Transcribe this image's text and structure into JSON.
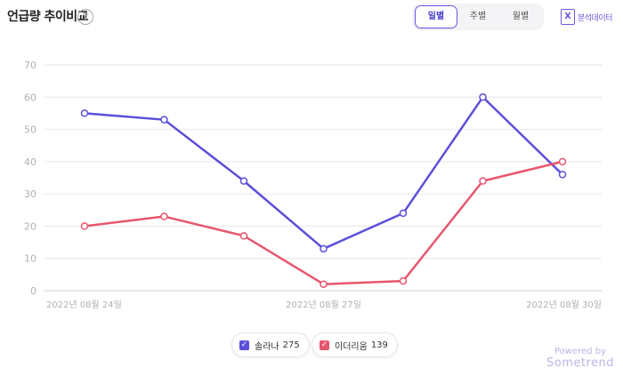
{
  "header": {
    "title": "언급량 추이비교",
    "help_symbol": "?",
    "tabs": [
      {
        "label": "일별",
        "active": true
      },
      {
        "label": "주별",
        "active": false
      },
      {
        "label": "월별",
        "active": false
      }
    ],
    "excel_icon_glyph": "X",
    "excel_label": "분석데이터"
  },
  "chart_data": {
    "type": "line",
    "x": [
      "2022-08-24",
      "2022-08-25",
      "2022-08-26",
      "2022-08-27",
      "2022-08-28",
      "2022-08-29",
      "2022-08-30"
    ],
    "x_tick_labels": [
      {
        "index": 0,
        "label": "2022년 08월 24일"
      },
      {
        "index": 3,
        "label": "2022년 08월 27일"
      },
      {
        "index": 6,
        "label": "2022년 08월 30일"
      }
    ],
    "ylim": [
      0,
      70
    ],
    "yticks": [
      0,
      10,
      20,
      30,
      40,
      50,
      60,
      70
    ],
    "grid": true,
    "legend_position": "bottom",
    "series": [
      {
        "name": "솔라나",
        "total": 275,
        "color": "#5b4fd9",
        "values": [
          55,
          53,
          34,
          13,
          24,
          60,
          36
        ]
      },
      {
        "name": "이더리움",
        "total": 139,
        "color": "#e8566e",
        "values": [
          20,
          23,
          17,
          2,
          3,
          34,
          40
        ]
      }
    ]
  },
  "legend": [
    {
      "name": "솔라나",
      "count": "275",
      "color": "#5b4fd9"
    },
    {
      "name": "이더리움",
      "count": "139",
      "color": "#e8566e"
    }
  ],
  "branding": {
    "powered_by": "Powered by",
    "brand": "Sometrend"
  }
}
